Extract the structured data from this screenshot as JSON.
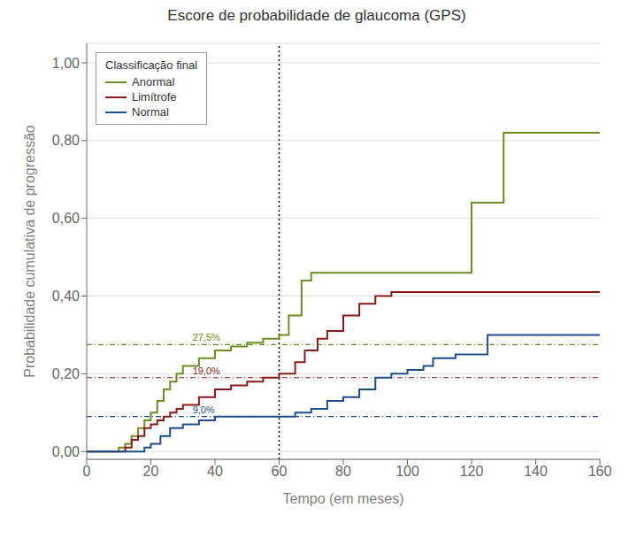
{
  "chart_data": {
    "type": "step",
    "title": "Escore de probabilidade de glaucoma (GPS)",
    "xlabel": "Tempo (em meses)",
    "ylabel": "Probabilidade cumulativa de progressão",
    "xlim": [
      0,
      160
    ],
    "ylim": [
      -0.02,
      1.05
    ],
    "xticks": [
      0,
      20,
      40,
      60,
      80,
      100,
      120,
      140,
      160
    ],
    "yticks": [
      {
        "value": 0.0,
        "label": "0,00"
      },
      {
        "value": 0.2,
        "label": "0,20"
      },
      {
        "value": 0.4,
        "label": "0,40"
      },
      {
        "value": 0.6,
        "label": "0,60"
      },
      {
        "value": 0.8,
        "label": "0,80"
      },
      {
        "value": 1.0,
        "label": "1,00"
      }
    ],
    "grid": true,
    "legend": "upper left",
    "legend_title": "Classificação final",
    "series": [
      {
        "name": "Anormal",
        "color": "#6b8e23",
        "x": [
          0,
          8,
          10,
          12,
          14,
          16,
          18,
          20,
          22,
          24,
          26,
          28,
          30,
          35,
          40,
          45,
          50,
          55,
          60,
          63,
          67,
          70,
          75,
          80,
          95,
          110,
          120,
          130,
          135,
          150,
          160
        ],
        "values": [
          0.0,
          0.0,
          0.01,
          0.02,
          0.04,
          0.06,
          0.08,
          0.1,
          0.13,
          0.16,
          0.18,
          0.2,
          0.22,
          0.24,
          0.26,
          0.27,
          0.28,
          0.29,
          0.3,
          0.35,
          0.44,
          0.46,
          0.46,
          0.46,
          0.46,
          0.46,
          0.64,
          0.82,
          0.82,
          0.82,
          0.82
        ]
      },
      {
        "name": "Limítrofe",
        "color": "#8b1a1a",
        "x": [
          0,
          10,
          12,
          14,
          16,
          18,
          20,
          22,
          24,
          26,
          28,
          30,
          35,
          40,
          45,
          50,
          55,
          60,
          65,
          68,
          72,
          75,
          80,
          85,
          90,
          95,
          100,
          110,
          120,
          140,
          160
        ],
        "values": [
          0.0,
          0.0,
          0.01,
          0.03,
          0.04,
          0.06,
          0.07,
          0.08,
          0.09,
          0.1,
          0.11,
          0.12,
          0.14,
          0.16,
          0.17,
          0.18,
          0.19,
          0.2,
          0.23,
          0.26,
          0.29,
          0.31,
          0.35,
          0.38,
          0.4,
          0.41,
          0.41,
          0.41,
          0.41,
          0.41,
          0.41
        ]
      },
      {
        "name": "Normal",
        "color": "#1e4d8c",
        "x": [
          0,
          15,
          18,
          20,
          23,
          26,
          30,
          35,
          40,
          45,
          50,
          55,
          60,
          65,
          70,
          75,
          80,
          85,
          90,
          95,
          100,
          105,
          108,
          115,
          120,
          125,
          130,
          150,
          160
        ],
        "values": [
          0.0,
          0.0,
          0.01,
          0.02,
          0.04,
          0.06,
          0.07,
          0.08,
          0.09,
          0.09,
          0.09,
          0.09,
          0.09,
          0.1,
          0.11,
          0.13,
          0.14,
          0.16,
          0.19,
          0.2,
          0.21,
          0.22,
          0.24,
          0.25,
          0.25,
          0.3,
          0.3,
          0.3,
          0.3
        ]
      }
    ],
    "annotations": [
      {
        "type": "hline",
        "y": 0.275,
        "color": "#6b8e23",
        "label": "27,5%",
        "x": 33,
        "line_style": "dashdot"
      },
      {
        "type": "hline",
        "y": 0.19,
        "color": "#8b1a1a",
        "label": "19,0%",
        "x": 33,
        "line_style": "dashdot"
      },
      {
        "type": "hline",
        "y": 0.09,
        "color": "#1e4d8c",
        "label": "9,0%",
        "x": 33,
        "line_style": "dashdot"
      },
      {
        "type": "vline",
        "x": 60,
        "color": "#000000",
        "line_style": "dotted"
      }
    ]
  }
}
